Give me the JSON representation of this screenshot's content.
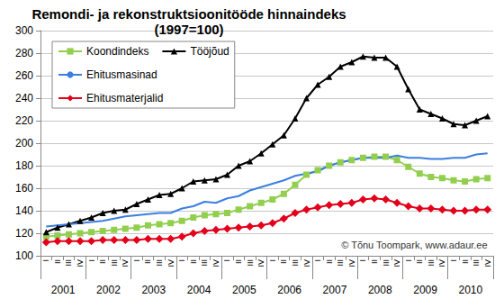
{
  "chart_data": {
    "type": "line",
    "title": "Remondi- ja rekonstruktsioonitööde hinnaindeks\n(1997=100)",
    "annotation": "© Tõnu Toompark, www.adaur.ee",
    "categories": [
      "I",
      "II",
      "III",
      "IV",
      "I",
      "II",
      "III",
      "IV",
      "I",
      "II",
      "III",
      "IV",
      "I",
      "II",
      "III",
      "IV",
      "I",
      "II",
      "III",
      "IV",
      "I",
      "II",
      "III",
      "IV",
      "I",
      "II",
      "III",
      "IV",
      "I",
      "II",
      "III",
      "IV",
      "I",
      "II",
      "III",
      "IV",
      "I",
      "II",
      "III",
      "IV"
    ],
    "year_labels": [
      "2001",
      "2002",
      "2003",
      "2004",
      "2005",
      "2006",
      "2007",
      "2008",
      "2009",
      "2010"
    ],
    "series": [
      {
        "name": "Koondindeks",
        "color": "#92cf4f",
        "marker": "square",
        "values": [
          117,
          118,
          119,
          120,
          121,
          122,
          123,
          124,
          125,
          127,
          128,
          129,
          131,
          134,
          136,
          137,
          138,
          141,
          144,
          147,
          150,
          155,
          163,
          172,
          176,
          180,
          183,
          185,
          187,
          188,
          188,
          185,
          179,
          173,
          170,
          169,
          167,
          166,
          168,
          169
        ]
      },
      {
        "name": "Tööjõud",
        "color": "#000000",
        "marker": "triangle",
        "values": [
          121,
          125,
          128,
          131,
          134,
          138,
          140,
          141,
          146,
          150,
          154,
          155,
          160,
          166,
          167,
          168,
          172,
          180,
          184,
          191,
          199,
          207,
          222,
          240,
          252,
          259,
          268,
          272,
          277,
          276,
          276,
          268,
          248,
          230,
          226,
          222,
          217,
          216,
          220,
          224
        ]
      },
      {
        "name": "Ehitusmasinad",
        "color": "#3b7fe0",
        "marker": "none",
        "values": [
          126,
          127,
          128,
          129,
          130,
          131,
          133,
          135,
          136,
          137,
          138,
          138,
          142,
          144,
          148,
          147,
          151,
          153,
          158,
          161,
          164,
          167,
          171,
          173,
          175,
          180,
          183,
          185,
          187,
          187,
          187,
          189,
          187,
          187,
          186,
          186,
          187,
          187,
          190,
          191
        ]
      },
      {
        "name": "Ehitusmaterjalid",
        "color": "#e3001b",
        "marker": "diamond",
        "values": [
          112,
          113,
          113,
          113,
          113,
          114,
          114,
          114,
          114,
          115,
          115,
          115,
          117,
          120,
          122,
          123,
          124,
          125,
          126,
          127,
          129,
          133,
          138,
          141,
          143,
          145,
          146,
          147,
          150,
          151,
          150,
          147,
          144,
          142,
          142,
          141,
          140,
          140,
          141,
          141
        ]
      }
    ],
    "ylim": [
      100,
      300
    ],
    "yticks": [
      100,
      120,
      140,
      160,
      180,
      200,
      220,
      240,
      260,
      280,
      300
    ],
    "grid": true,
    "legend": "upper left"
  }
}
